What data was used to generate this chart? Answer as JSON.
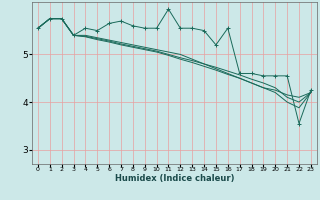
{
  "xlabel": "Humidex (Indice chaleur)",
  "bg_color": "#cce8e8",
  "grid_color": "#e8a0a0",
  "line_color": "#1a6a5a",
  "xlim": [
    -0.5,
    23.5
  ],
  "ylim": [
    2.7,
    6.1
  ],
  "yticks": [
    3,
    4,
    5
  ],
  "xticks": [
    0,
    1,
    2,
    3,
    4,
    5,
    6,
    7,
    8,
    9,
    10,
    11,
    12,
    13,
    14,
    15,
    16,
    17,
    18,
    19,
    20,
    21,
    22,
    23
  ],
  "series_jagged": [
    5.55,
    5.75,
    5.75,
    5.4,
    5.55,
    5.5,
    5.65,
    5.7,
    5.6,
    5.55,
    5.55,
    5.95,
    5.55,
    5.55,
    5.5,
    5.2,
    5.55,
    4.6,
    4.6,
    4.55,
    4.55,
    4.55,
    3.55,
    4.25
  ],
  "series_line1": [
    5.55,
    5.75,
    5.75,
    5.4,
    5.4,
    5.35,
    5.3,
    5.25,
    5.2,
    5.15,
    5.1,
    5.05,
    5.0,
    4.9,
    4.8,
    4.7,
    4.6,
    4.5,
    4.4,
    4.3,
    4.25,
    4.15,
    4.1,
    4.2
  ],
  "series_line2": [
    5.55,
    5.75,
    5.75,
    5.4,
    5.38,
    5.33,
    5.28,
    5.22,
    5.17,
    5.12,
    5.07,
    5.0,
    4.93,
    4.87,
    4.8,
    4.73,
    4.65,
    4.57,
    4.48,
    4.4,
    4.3,
    4.1,
    4.0,
    4.2
  ],
  "series_line3": [
    5.55,
    5.75,
    5.75,
    5.4,
    5.37,
    5.31,
    5.26,
    5.2,
    5.15,
    5.1,
    5.05,
    4.98,
    4.9,
    4.83,
    4.75,
    4.67,
    4.58,
    4.5,
    4.4,
    4.3,
    4.2,
    4.0,
    3.88,
    4.2
  ]
}
